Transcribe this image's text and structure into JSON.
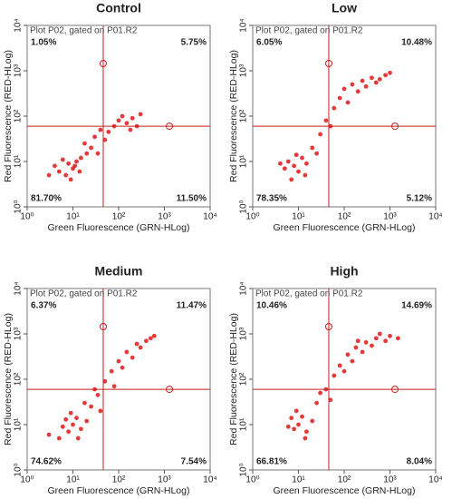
{
  "chart_data": [
    {
      "type": "scatter",
      "title": "Control",
      "subtitle": "Plot P02, gated on P01.R2",
      "xlabel": "Green Fluorescence (GRN-HLog)",
      "ylabel": "Red Fluorescence (RED-HLog)",
      "log": true,
      "color": "#e01818",
      "xlim": [
        1,
        10000
      ],
      "ylim": [
        1,
        10000
      ],
      "xticks": [
        {
          "value": 1,
          "label": "10⁰"
        },
        {
          "value": 10,
          "label": "10¹"
        },
        {
          "value": 100,
          "label": "10²"
        },
        {
          "value": 1000,
          "label": "10³"
        },
        {
          "value": 10000,
          "label": "10⁴"
        }
      ],
      "yticks": [
        {
          "value": 1,
          "label": "10⁰"
        },
        {
          "value": 10,
          "label": "10¹"
        },
        {
          "value": 100,
          "label": "10²"
        },
        {
          "value": 1000,
          "label": "10³"
        },
        {
          "value": 10000,
          "label": "10⁴"
        }
      ],
      "x_gate": 46,
      "y_gate": 60,
      "quadrant_values": [
        1.05,
        5.75,
        81.7,
        11.5
      ],
      "quadrant_value_labels": [
        "1.05%",
        "5.75%",
        "81.70%",
        "11.50%"
      ],
      "x": [
        5,
        8,
        10,
        12,
        7,
        15,
        6,
        9,
        20,
        11,
        4,
        14,
        25,
        30,
        40,
        60,
        100,
        150,
        200,
        250,
        120,
        80,
        300,
        180,
        50,
        18,
        35,
        3
      ],
      "y": [
        6,
        9,
        7,
        10,
        5,
        12,
        11,
        4,
        15,
        8,
        8,
        6,
        20,
        35,
        50,
        45,
        80,
        70,
        90,
        60,
        100,
        60,
        110,
        50,
        30,
        25,
        15,
        5
      ]
    },
    {
      "type": "scatter",
      "title": "Low",
      "subtitle": "Plot P02, gated on P01.R2",
      "xlabel": "Green Fluorescence (GRN-HLog)",
      "ylabel": "Red Fluorescence (RED-HLog)",
      "log": true,
      "color": "#e01818",
      "xlim": [
        1,
        10000
      ],
      "ylim": [
        1,
        10000
      ],
      "xticks": [
        {
          "value": 1,
          "label": "10⁰"
        },
        {
          "value": 10,
          "label": "10¹"
        },
        {
          "value": 100,
          "label": "10²"
        },
        {
          "value": 1000,
          "label": "10³"
        },
        {
          "value": 10000,
          "label": "10⁴"
        }
      ],
      "yticks": [
        {
          "value": 1,
          "label": "10⁰"
        },
        {
          "value": 10,
          "label": "10¹"
        },
        {
          "value": 100,
          "label": "10²"
        },
        {
          "value": 1000,
          "label": "10³"
        },
        {
          "value": 10000,
          "label": "10⁴"
        }
      ],
      "x_gate": 46,
      "y_gate": 60,
      "quadrant_values": [
        6.05,
        10.48,
        78.35,
        5.12
      ],
      "quadrant_value_labels": [
        "6.05%",
        "10.48%",
        "78.35%",
        "5.12%"
      ],
      "x": [
        8,
        6,
        10,
        12,
        5,
        9,
        15,
        7,
        20,
        30,
        40,
        60,
        80,
        100,
        150,
        250,
        400,
        600,
        800,
        300,
        500,
        200,
        120,
        25,
        50,
        1000,
        4,
        14
      ],
      "y": [
        8,
        10,
        6,
        12,
        7,
        14,
        9,
        4,
        20,
        40,
        80,
        150,
        250,
        400,
        500,
        600,
        700,
        650,
        800,
        450,
        550,
        350,
        200,
        15,
        60,
        900,
        9,
        5
      ]
    },
    {
      "type": "scatter",
      "title": "Medium",
      "subtitle": "Plot P02, gated on P01.R2",
      "xlabel": "Green Fluorescence (GRN-HLog)",
      "ylabel": "Red Fluorescence (RED-HLog)",
      "log": true,
      "color": "#e01818",
      "xlim": [
        1,
        10000
      ],
      "ylim": [
        1,
        10000
      ],
      "xticks": [
        {
          "value": 1,
          "label": "10⁰"
        },
        {
          "value": 10,
          "label": "10¹"
        },
        {
          "value": 100,
          "label": "10²"
        },
        {
          "value": 1000,
          "label": "10³"
        },
        {
          "value": 10000,
          "label": "10⁴"
        }
      ],
      "yticks": [
        {
          "value": 1,
          "label": "10⁰"
        },
        {
          "value": 10,
          "label": "10¹"
        },
        {
          "value": 100,
          "label": "10²"
        },
        {
          "value": 1000,
          "label": "10³"
        },
        {
          "value": 10000,
          "label": "10⁴"
        }
      ],
      "x_gate": 46,
      "y_gate": 60,
      "quadrant_values": [
        6.37,
        11.47,
        74.62,
        7.54
      ],
      "quadrant_value_labels": [
        "6.37%",
        "11.47%",
        "74.62%",
        "7.54%"
      ],
      "x": [
        10,
        8,
        12,
        6,
        15,
        9,
        20,
        5,
        25,
        35,
        50,
        70,
        100,
        150,
        250,
        400,
        500,
        300,
        200,
        600,
        18,
        40,
        80,
        7,
        13,
        120,
        30,
        3
      ],
      "y": [
        10,
        7,
        14,
        9,
        8,
        18,
        12,
        5,
        25,
        45,
        90,
        150,
        250,
        400,
        600,
        700,
        800,
        500,
        300,
        900,
        30,
        20,
        70,
        13,
        5,
        180,
        60,
        6
      ]
    },
    {
      "type": "scatter",
      "title": "High",
      "subtitle": "Plot P02, gated on P01.R2",
      "xlabel": "Green Fluorescence (GRN-HLog)",
      "ylabel": "Red Fluorescence (RED-HLog)",
      "log": true,
      "color": "#e01818",
      "xlim": [
        1,
        10000
      ],
      "ylim": [
        1,
        10000
      ],
      "xticks": [
        {
          "value": 1,
          "label": "10⁰"
        },
        {
          "value": 10,
          "label": "10¹"
        },
        {
          "value": 100,
          "label": "10²"
        },
        {
          "value": 1000,
          "label": "10³"
        },
        {
          "value": 10000,
          "label": "10⁴"
        }
      ],
      "yticks": [
        {
          "value": 1,
          "label": "10⁰"
        },
        {
          "value": 10,
          "label": "10¹"
        },
        {
          "value": 100,
          "label": "10²"
        },
        {
          "value": 1000,
          "label": "10³"
        },
        {
          "value": 10000,
          "label": "10⁴"
        }
      ],
      "x_gate": 46,
      "y_gate": 60,
      "quadrant_values": [
        10.46,
        14.69,
        66.81,
        8.04
      ],
      "quadrant_value_labels": [
        "10.46%",
        "14.69%",
        "66.81%",
        "8.04%"
      ],
      "x": [
        10,
        8,
        12,
        6,
        15,
        9,
        20,
        25,
        40,
        60,
        80,
        120,
        180,
        300,
        500,
        800,
        1000,
        400,
        250,
        150,
        600,
        30,
        50,
        100,
        7,
        14,
        1500,
        200
      ],
      "y": [
        10,
        8,
        15,
        9,
        7,
        20,
        12,
        30,
        60,
        120,
        200,
        350,
        500,
        650,
        800,
        700,
        900,
        550,
        400,
        250,
        1000,
        50,
        35,
        150,
        14,
        5,
        800,
        700
      ]
    }
  ]
}
